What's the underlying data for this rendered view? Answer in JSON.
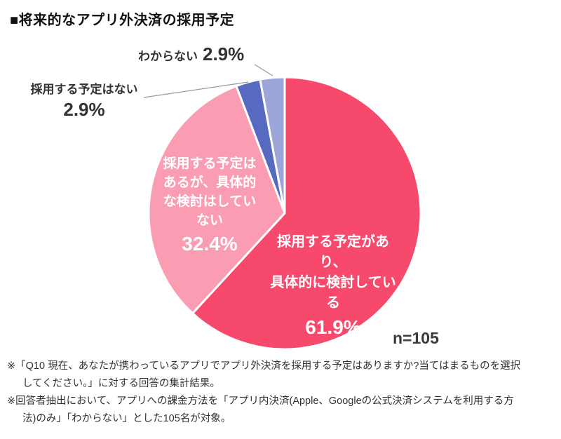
{
  "title": "■将来的なアプリ外決済の採用予定",
  "sample_label": "n=105",
  "colors": {
    "plan_reviewing": "#F6496C",
    "plan_no_review": "#FA9DB2",
    "no_plan": "#5869C1",
    "unknown": "#9CA6D8",
    "leader_line": "#999999",
    "outside_label_text": "#333333",
    "inside_label_text": "#FFFFFF"
  },
  "chart_data": {
    "type": "pie",
    "title": "将来的なアプリ外決済の採用予定",
    "n": 105,
    "unit": "%",
    "start_angle_deg": 0,
    "direction": "clockwise",
    "slices": [
      {
        "label": "採用する予定があり、具体的に検討している",
        "value": 61.9,
        "color": "#F6496C",
        "label_placement": "inside"
      },
      {
        "label": "採用する予定はあるが、具体的な検討はしていない",
        "value": 32.4,
        "color": "#FA9DB2",
        "label_placement": "inside"
      },
      {
        "label": "採用する予定はない",
        "value": 2.9,
        "color": "#5869C1",
        "label_placement": "outside"
      },
      {
        "label": "わからない",
        "value": 2.9,
        "color": "#9CA6D8",
        "label_placement": "outside"
      }
    ]
  },
  "callouts": {
    "unknown": {
      "label": "わからない",
      "value": "2.9%"
    },
    "no_plan": {
      "label": "採用する予定はない",
      "value": "2.9%"
    },
    "plan_no_review": {
      "lines": [
        "採用する予定は",
        "あるが、具体的",
        "な検討はしてい",
        "ない"
      ],
      "value": "32.4%"
    },
    "plan_reviewing": {
      "lines": [
        "採用する予定があり、",
        "具体的に検討している"
      ],
      "value": "61.9%"
    }
  },
  "footnotes": [
    {
      "line1": "※「Q10 現在、あなたが携わっているアプリでアプリ外決済を採用する予定はありますか?当てはまるものを選択",
      "line2": "してください。」に対する回答の集計結果。"
    },
    {
      "line1": "※回答者抽出において、アプリへの課金方法を「アプリ内決済(Apple、Googleの公式決済システムを利用する方",
      "line2": "法)のみ」「わからない」とした105名が対象。"
    }
  ]
}
